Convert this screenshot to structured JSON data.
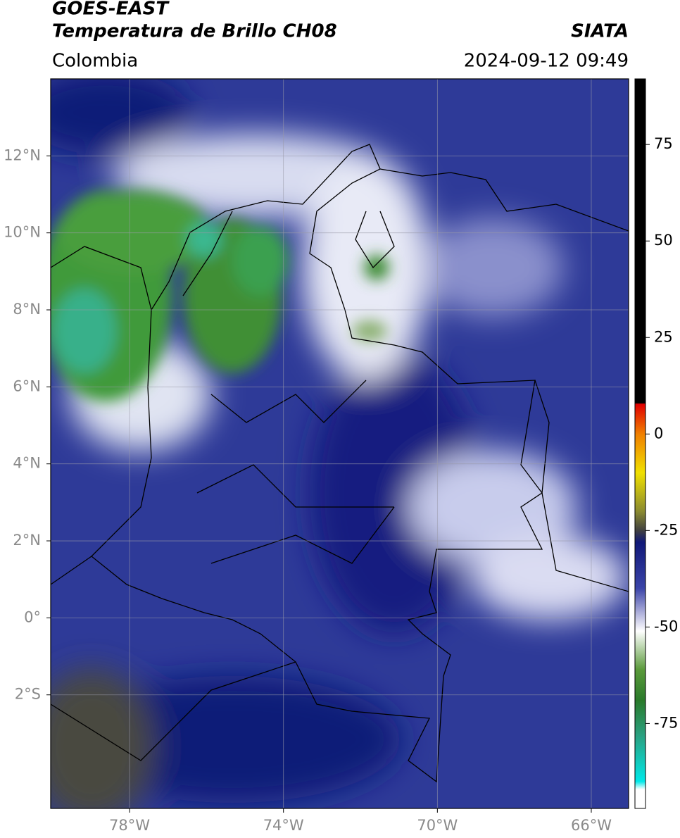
{
  "header": {
    "source": "GOES-EAST",
    "title": "Temperatura de Brillo CH08",
    "org": "SIATA",
    "region": "Colombia",
    "datetime": "2024-09-12 09:49"
  },
  "map": {
    "lon_lim": [
      -80.05,
      -65.03
    ],
    "lat_lim": [
      -4.95,
      14.0
    ],
    "lon_ticks": [
      {
        "value": -78,
        "label": "78°W"
      },
      {
        "value": -74,
        "label": "74°W"
      },
      {
        "value": -70,
        "label": "70°W"
      },
      {
        "value": -66,
        "label": "66°W"
      }
    ],
    "lat_ticks": [
      {
        "value": 12,
        "label": "12°N"
      },
      {
        "value": 10,
        "label": "10°N"
      },
      {
        "value": 8,
        "label": "8°N"
      },
      {
        "value": 6,
        "label": "6°N"
      },
      {
        "value": 4,
        "label": "4°N"
      },
      {
        "value": 2,
        "label": "2°N"
      },
      {
        "value": 0,
        "label": "0°"
      },
      {
        "value": -2,
        "label": "2°S"
      }
    ]
  },
  "colorbar": {
    "lim": [
      -97,
      92
    ],
    "ticks": [
      75,
      50,
      25,
      0,
      -25,
      -50,
      -75
    ]
  }
}
